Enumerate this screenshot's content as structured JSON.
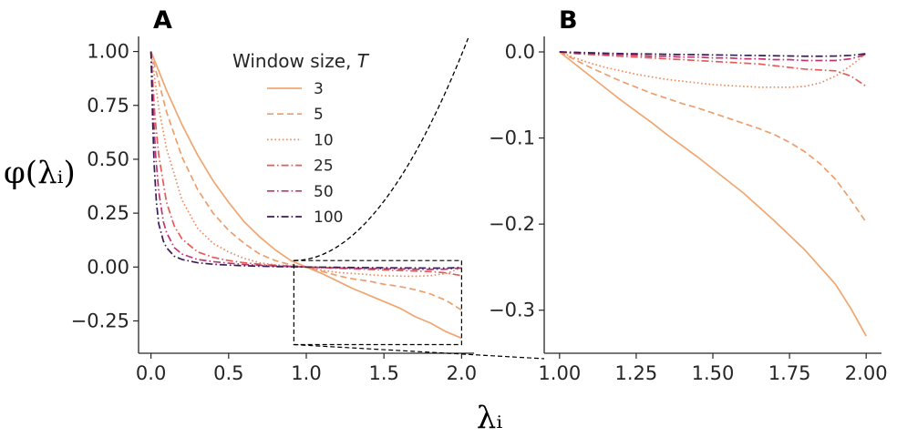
{
  "chart_data": [
    {
      "panel": "A",
      "type": "line",
      "xlim": [
        -0.08,
        2.08
      ],
      "ylim": [
        -0.4,
        1.07
      ],
      "xticks": [
        0.0,
        0.5,
        1.0,
        1.5,
        2.0
      ],
      "xtick_labels": [
        "0.0",
        "0.5",
        "1.0",
        "1.5",
        "2.0"
      ],
      "yticks": [
        1.0,
        0.75,
        0.5,
        0.25,
        0.0,
        -0.25
      ],
      "ytick_labels": [
        "1.00",
        "0.75",
        "0.50",
        "0.25",
        "0.00",
        "−0.25"
      ],
      "ylabel": "φ(λᵢ)",
      "legend_title": "Window size, T",
      "legend_placement": "top-center",
      "grid": false,
      "series": [
        {
          "name": "3",
          "color": "#F0A671",
          "dash": "solid",
          "x": [
            0.0,
            0.1,
            0.2,
            0.3,
            0.4,
            0.5,
            0.6,
            0.7,
            0.8,
            0.9,
            1.0,
            1.1,
            1.2,
            1.3,
            1.4,
            1.5,
            1.6,
            1.7,
            1.8,
            1.9,
            2.0
          ],
          "y": [
            1.0,
            0.82,
            0.66,
            0.52,
            0.4,
            0.3,
            0.21,
            0.14,
            0.08,
            0.03,
            0.0,
            -0.03,
            -0.065,
            -0.1,
            -0.13,
            -0.16,
            -0.19,
            -0.23,
            -0.26,
            -0.3,
            -0.33
          ]
        },
        {
          "name": "5",
          "color": "#EE9E6C",
          "dash": "dashed",
          "x": [
            0.0,
            0.1,
            0.2,
            0.3,
            0.4,
            0.5,
            0.6,
            0.7,
            0.8,
            0.9,
            1.0,
            1.1,
            1.2,
            1.3,
            1.4,
            1.5,
            1.6,
            1.7,
            1.8,
            1.9,
            2.0
          ],
          "y": [
            1.0,
            0.72,
            0.51,
            0.36,
            0.25,
            0.17,
            0.11,
            0.06,
            0.03,
            0.01,
            0.0,
            -0.02,
            -0.04,
            -0.055,
            -0.065,
            -0.08,
            -0.09,
            -0.105,
            -0.125,
            -0.155,
            -0.2
          ]
        },
        {
          "name": "10",
          "color": "#EB8C5E",
          "dash": "dotted",
          "x": [
            0.0,
            0.05,
            0.1,
            0.2,
            0.3,
            0.4,
            0.5,
            0.6,
            0.7,
            0.8,
            0.9,
            1.0,
            1.1,
            1.2,
            1.3,
            1.4,
            1.5,
            1.6,
            1.7,
            1.8,
            1.9,
            2.0
          ],
          "y": [
            1.0,
            0.74,
            0.55,
            0.31,
            0.18,
            0.11,
            0.07,
            0.04,
            0.02,
            0.01,
            0.005,
            0.0,
            -0.015,
            -0.025,
            -0.03,
            -0.035,
            -0.04,
            -0.042,
            -0.043,
            -0.04,
            -0.03,
            -0.003
          ]
        },
        {
          "name": "25",
          "color": "#E45C58",
          "dash": "dashdot",
          "x": [
            0.0,
            0.025,
            0.05,
            0.1,
            0.15,
            0.2,
            0.3,
            0.4,
            0.5,
            0.6,
            0.7,
            0.8,
            0.9,
            1.0,
            1.2,
            1.4,
            1.6,
            1.8,
            1.9,
            2.0
          ],
          "y": [
            1.0,
            0.7,
            0.52,
            0.3,
            0.19,
            0.13,
            0.07,
            0.045,
            0.03,
            0.02,
            0.013,
            0.008,
            0.004,
            0.0,
            -0.006,
            -0.011,
            -0.016,
            -0.021,
            -0.027,
            -0.04
          ]
        },
        {
          "name": "50",
          "color": "#BE3670",
          "dash": "dashdot",
          "x": [
            0.0,
            0.015,
            0.03,
            0.05,
            0.08,
            0.1,
            0.15,
            0.2,
            0.3,
            0.4,
            0.5,
            0.6,
            0.7,
            0.8,
            0.9,
            1.0,
            1.2,
            1.4,
            1.6,
            1.8,
            1.9,
            2.0
          ],
          "y": [
            1.0,
            0.72,
            0.52,
            0.35,
            0.21,
            0.16,
            0.09,
            0.06,
            0.035,
            0.025,
            0.018,
            0.012,
            0.008,
            0.005,
            0.002,
            0.0,
            -0.004,
            -0.007,
            -0.009,
            -0.011,
            -0.01,
            -0.004
          ]
        },
        {
          "name": "100",
          "color": "#3B1B59",
          "dash": "dashdot",
          "x": [
            0.0,
            0.01,
            0.02,
            0.035,
            0.05,
            0.08,
            0.1,
            0.15,
            0.2,
            0.3,
            0.4,
            0.5,
            0.6,
            0.7,
            0.8,
            0.9,
            1.0,
            1.2,
            1.4,
            1.6,
            1.8,
            1.9,
            2.0
          ],
          "y": [
            1.0,
            0.7,
            0.48,
            0.3,
            0.2,
            0.12,
            0.09,
            0.05,
            0.035,
            0.02,
            0.013,
            0.009,
            0.006,
            0.004,
            0.002,
            0.001,
            0.0,
            -0.0015,
            -0.003,
            -0.004,
            -0.005,
            -0.005,
            -0.002
          ]
        }
      ],
      "annotations": {
        "zoom_box": {
          "x": [
            0.92,
            2.0
          ],
          "y": [
            -0.36,
            0.03
          ]
        },
        "quadratic_guide": {
          "x": [
            0.92,
            2.3
          ],
          "dash": "dashed",
          "color": "#000000"
        }
      }
    },
    {
      "panel": "B",
      "type": "line",
      "xlim": [
        0.95,
        2.05
      ],
      "ylim": [
        -0.35,
        0.018
      ],
      "xticks": [
        1.0,
        1.25,
        1.5,
        1.75,
        2.0
      ],
      "xtick_labels": [
        "1.00",
        "1.25",
        "1.50",
        "1.75",
        "2.00"
      ],
      "yticks": [
        0.0,
        -0.1,
        -0.2,
        -0.3
      ],
      "ytick_labels": [
        "0.0",
        "−0.1",
        "−0.2",
        "−0.3"
      ],
      "grid": false,
      "series": [
        {
          "name": "3",
          "color": "#F0A671",
          "dash": "solid",
          "x": [
            1.0,
            1.05,
            1.1,
            1.15,
            1.2,
            1.25,
            1.3,
            1.35,
            1.4,
            1.45,
            1.5,
            1.55,
            1.6,
            1.65,
            1.7,
            1.75,
            1.8,
            1.85,
            1.9,
            1.95,
            2.0
          ],
          "y": [
            0.0,
            -0.014,
            -0.028,
            -0.042,
            -0.056,
            -0.069,
            -0.082,
            -0.096,
            -0.109,
            -0.122,
            -0.136,
            -0.15,
            -0.164,
            -0.18,
            -0.196,
            -0.213,
            -0.23,
            -0.25,
            -0.27,
            -0.298,
            -0.33
          ]
        },
        {
          "name": "5",
          "color": "#EE9E6C",
          "dash": "dashed",
          "x": [
            1.0,
            1.05,
            1.1,
            1.15,
            1.2,
            1.25,
            1.3,
            1.35,
            1.4,
            1.45,
            1.5,
            1.55,
            1.6,
            1.65,
            1.7,
            1.75,
            1.8,
            1.85,
            1.9,
            1.95,
            2.0
          ],
          "y": [
            0.0,
            -0.009,
            -0.018,
            -0.026,
            -0.034,
            -0.041,
            -0.048,
            -0.054,
            -0.06,
            -0.065,
            -0.071,
            -0.077,
            -0.083,
            -0.089,
            -0.096,
            -0.105,
            -0.116,
            -0.13,
            -0.148,
            -0.172,
            -0.198
          ]
        },
        {
          "name": "10",
          "color": "#EB8C5E",
          "dash": "dotted",
          "x": [
            1.0,
            1.05,
            1.1,
            1.15,
            1.2,
            1.25,
            1.3,
            1.35,
            1.4,
            1.45,
            1.5,
            1.55,
            1.6,
            1.65,
            1.7,
            1.75,
            1.8,
            1.85,
            1.9,
            1.95,
            2.0
          ],
          "y": [
            0.0,
            -0.007,
            -0.013,
            -0.018,
            -0.022,
            -0.026,
            -0.029,
            -0.032,
            -0.034,
            -0.036,
            -0.038,
            -0.039,
            -0.04,
            -0.041,
            -0.041,
            -0.041,
            -0.04,
            -0.036,
            -0.028,
            -0.016,
            -0.002
          ]
        },
        {
          "name": "25",
          "color": "#E45C58",
          "dash": "dashdot",
          "x": [
            1.0,
            1.05,
            1.1,
            1.15,
            1.2,
            1.25,
            1.3,
            1.35,
            1.4,
            1.45,
            1.5,
            1.55,
            1.6,
            1.65,
            1.7,
            1.75,
            1.8,
            1.85,
            1.9,
            1.95,
            2.0
          ],
          "y": [
            0.0,
            -0.002,
            -0.003,
            -0.004,
            -0.005,
            -0.006,
            -0.007,
            -0.008,
            -0.009,
            -0.01,
            -0.011,
            -0.012,
            -0.013,
            -0.014,
            -0.016,
            -0.018,
            -0.02,
            -0.021,
            -0.022,
            -0.028,
            -0.04
          ]
        },
        {
          "name": "50",
          "color": "#BE3670",
          "dash": "dashdot",
          "x": [
            1.0,
            1.05,
            1.1,
            1.15,
            1.2,
            1.25,
            1.3,
            1.35,
            1.4,
            1.45,
            1.5,
            1.55,
            1.6,
            1.65,
            1.7,
            1.75,
            1.8,
            1.85,
            1.9,
            1.95,
            2.0
          ],
          "y": [
            0.0,
            -0.001,
            -0.002,
            -0.003,
            -0.003,
            -0.004,
            -0.005,
            -0.005,
            -0.006,
            -0.006,
            -0.007,
            -0.007,
            -0.008,
            -0.008,
            -0.009,
            -0.009,
            -0.01,
            -0.01,
            -0.01,
            -0.008,
            -0.003
          ]
        },
        {
          "name": "100",
          "color": "#3B1B59",
          "dash": "dashdot",
          "x": [
            1.0,
            1.05,
            1.1,
            1.15,
            1.2,
            1.25,
            1.3,
            1.35,
            1.4,
            1.45,
            1.5,
            1.55,
            1.6,
            1.65,
            1.7,
            1.75,
            1.8,
            1.85,
            1.9,
            1.95,
            2.0
          ],
          "y": [
            0.0,
            -0.0005,
            -0.001,
            -0.0015,
            -0.002,
            -0.0022,
            -0.0025,
            -0.0028,
            -0.003,
            -0.0032,
            -0.0035,
            -0.0037,
            -0.004,
            -0.0042,
            -0.0045,
            -0.0047,
            -0.005,
            -0.005,
            -0.0048,
            -0.004,
            -0.002
          ]
        }
      ]
    }
  ],
  "shared_xlabel": "λᵢ",
  "panel_labels": [
    "A",
    "B"
  ]
}
